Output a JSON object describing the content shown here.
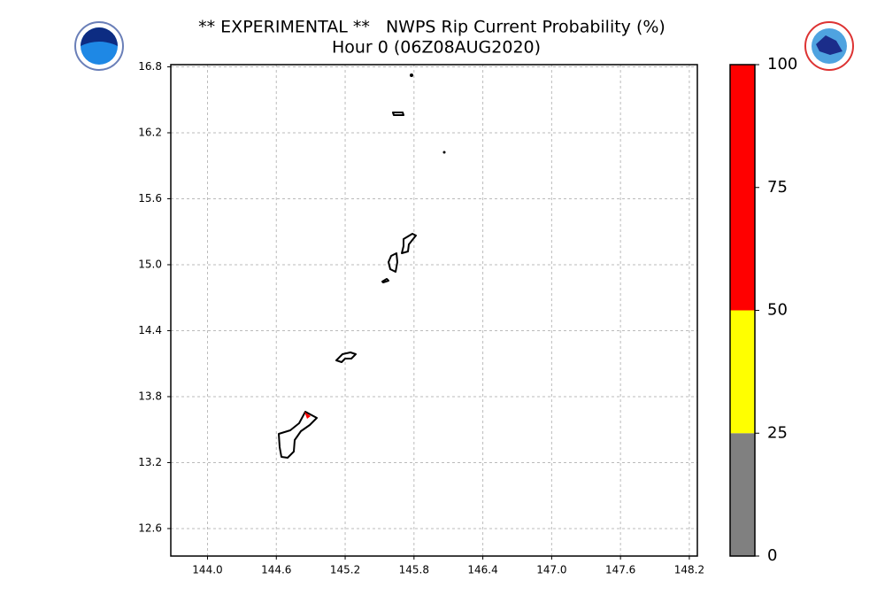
{
  "chart_data": {
    "type": "map",
    "title": "** EXPERIMENTAL **   NWPS Rip Current Probability (%)",
    "subtitle": "Hour 0 (06Z08AUG2020)",
    "xlim": [
      143.68,
      148.27
    ],
    "ylim": [
      12.35,
      16.82
    ],
    "xticks": [
      {
        "value": 144,
        "label": "144.0"
      },
      144.6,
      145.2,
      145.8,
      146.4,
      {
        "value": 147,
        "label": "147.0"
      },
      147.6,
      148.2
    ],
    "yticks": [
      12.6,
      13.2,
      13.8,
      14.4,
      {
        "value": 15,
        "label": "15.0"
      },
      15.6,
      16.2,
      16.8
    ],
    "grid": true,
    "colorbar": {
      "lim": [
        0,
        100
      ],
      "ticks": [
        0,
        25,
        50,
        75,
        100
      ],
      "bins": [
        0,
        25,
        50,
        100
      ],
      "colors": [
        "#808080",
        "#ffff00",
        "#ff0000"
      ]
    }
  }
}
